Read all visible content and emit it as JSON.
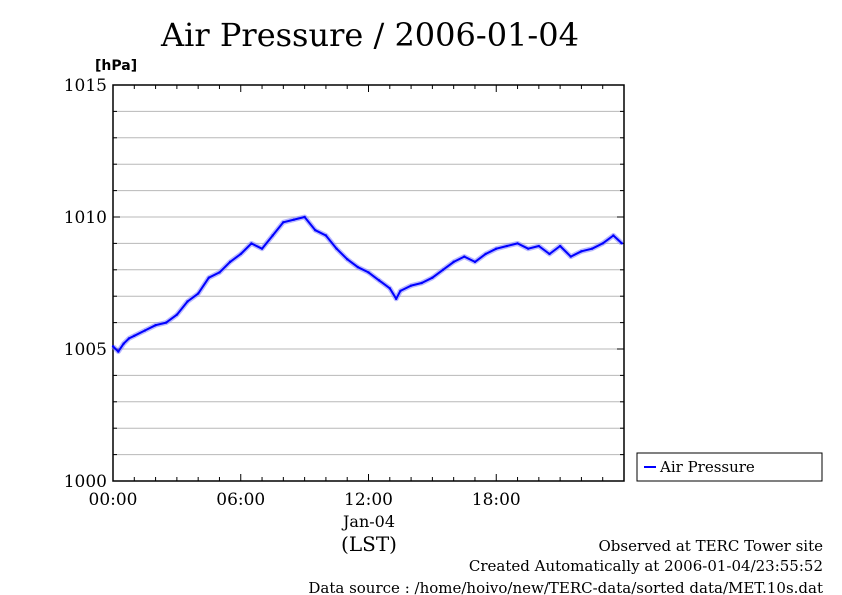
{
  "chart_data": {
    "type": "line",
    "title": "Air Pressure / 2006-01-04",
    "ylabel": "[hPa]",
    "xlabel": "(LST)",
    "date_label": "Jan-04",
    "ylim": [
      1000,
      1015
    ],
    "xlim_hours": [
      0,
      24
    ],
    "yticks": [
      {
        "value": 1000,
        "label": "1000"
      },
      {
        "value": 1005,
        "label": "1005"
      },
      {
        "value": 1010,
        "label": "1010"
      },
      {
        "value": 1015,
        "label": "1015"
      }
    ],
    "xticks": [
      {
        "hour": 0,
        "label": "00:00"
      },
      {
        "hour": 6,
        "label": "06:00"
      },
      {
        "hour": 12,
        "label": "12:00"
      },
      {
        "hour": 18,
        "label": "18:00"
      }
    ],
    "grid": true,
    "legend_position": "right",
    "series": [
      {
        "name": "Air Pressure",
        "color": "#0000ff",
        "x_hours": [
          0,
          0.25,
          0.5,
          0.75,
          1.0,
          1.5,
          2.0,
          2.5,
          3.0,
          3.5,
          4.0,
          4.5,
          5.0,
          5.5,
          6.0,
          6.5,
          7.0,
          7.5,
          8.0,
          8.5,
          9.0,
          9.5,
          10.0,
          10.5,
          11.0,
          11.5,
          12.0,
          12.5,
          13.0,
          13.3,
          13.5,
          14.0,
          14.5,
          15.0,
          15.5,
          16.0,
          16.5,
          17.0,
          17.5,
          18.0,
          18.5,
          19.0,
          19.5,
          20.0,
          20.5,
          21.0,
          21.5,
          22.0,
          22.5,
          23.0,
          23.5,
          23.9
        ],
        "values": [
          1005.1,
          1004.9,
          1005.2,
          1005.4,
          1005.5,
          1005.7,
          1005.9,
          1006.0,
          1006.3,
          1006.8,
          1007.1,
          1007.7,
          1007.9,
          1008.3,
          1008.6,
          1009.0,
          1008.8,
          1009.3,
          1009.8,
          1009.9,
          1010.0,
          1009.5,
          1009.3,
          1008.8,
          1008.4,
          1008.1,
          1007.9,
          1007.6,
          1007.3,
          1006.9,
          1007.2,
          1007.4,
          1007.5,
          1007.7,
          1008.0,
          1008.3,
          1008.5,
          1008.3,
          1008.6,
          1008.8,
          1008.9,
          1009.0,
          1008.8,
          1008.9,
          1008.6,
          1008.9,
          1008.5,
          1008.7,
          1008.8,
          1009.0,
          1009.3,
          1009.0
        ]
      }
    ]
  },
  "footer": {
    "line1": "Observed at TERC Tower site",
    "line2": "Created Automatically at 2006-01-04/23:55:52",
    "line3": "Data source : /home/hoivo/new/TERC-data/sorted  data/MET.10s.dat"
  }
}
